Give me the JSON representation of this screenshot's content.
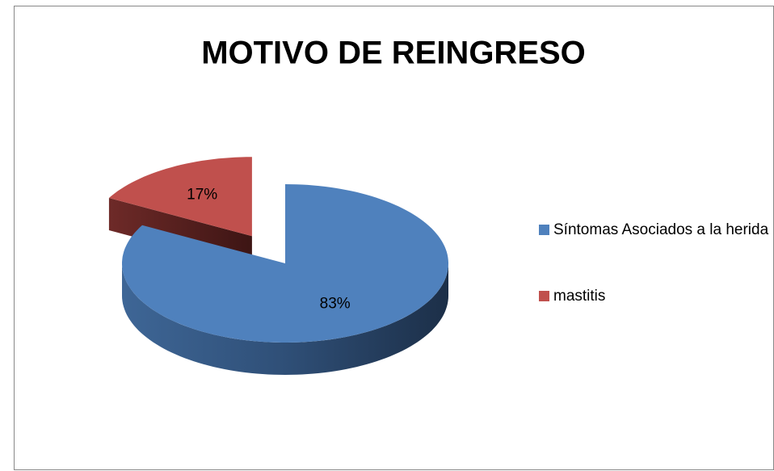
{
  "chart_data": {
    "type": "pie",
    "title": "MOTIVO DE REINGRESO",
    "categories": [
      "Síntomas Asociados a la herida",
      "mastitis"
    ],
    "values": [
      83,
      17
    ],
    "value_labels": [
      "83%",
      "17%"
    ],
    "colors": [
      "#4f81bd",
      "#c0504d"
    ],
    "legend": "right"
  }
}
